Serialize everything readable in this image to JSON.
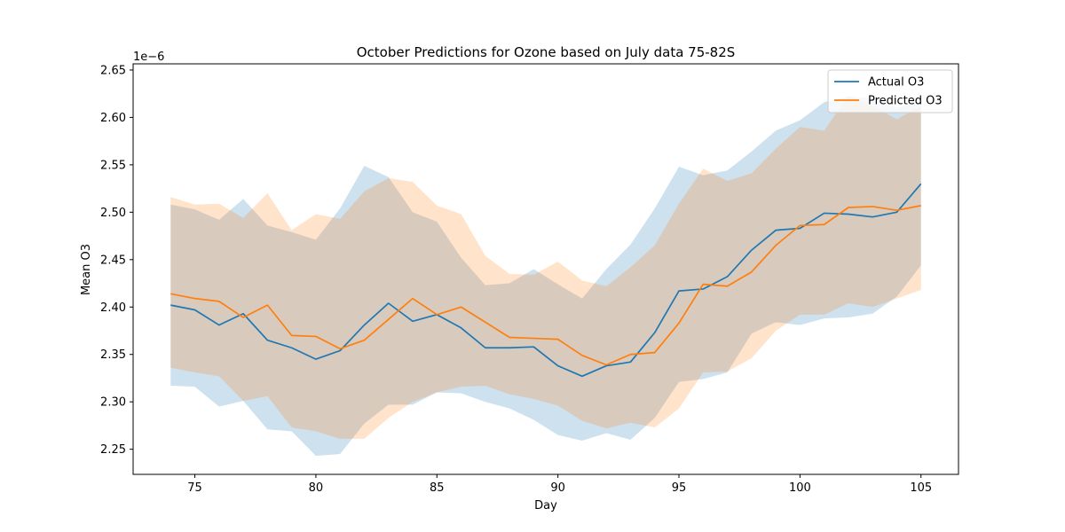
{
  "chart_data": {
    "type": "line",
    "title": "October Predictions for Ozone based on July data 75-82S",
    "xlabel": "Day",
    "ylabel": "Mean O3",
    "y_offset_text": "1e−6",
    "xlim": [
      72.45,
      106.55
    ],
    "ylim": [
      2.2235,
      2.6565
    ],
    "x_ticks": [
      75,
      80,
      85,
      90,
      95,
      100,
      105
    ],
    "x_tick_labels": [
      "75",
      "80",
      "85",
      "90",
      "95",
      "100",
      "105"
    ],
    "y_ticks": [
      2.25,
      2.3,
      2.35,
      2.4,
      2.45,
      2.5,
      2.55,
      2.6,
      2.65
    ],
    "y_tick_labels": [
      "2.25",
      "2.30",
      "2.35",
      "2.40",
      "2.45",
      "2.50",
      "2.55",
      "2.60",
      "2.65"
    ],
    "grid": false,
    "legend_position": "top-right",
    "x": [
      74,
      75,
      76,
      77,
      78,
      79,
      80,
      81,
      82,
      83,
      84,
      85,
      86,
      87,
      88,
      89,
      90,
      91,
      92,
      93,
      94,
      95,
      96,
      97,
      98,
      99,
      100,
      101,
      102,
      103,
      104,
      105
    ],
    "series": [
      {
        "name": "Actual O3",
        "color": "#1f77b4",
        "values": [
          2.402,
          2.397,
          2.381,
          2.393,
          2.365,
          2.357,
          2.345,
          2.354,
          2.381,
          2.404,
          2.385,
          2.392,
          2.378,
          2.357,
          2.357,
          2.358,
          2.338,
          2.327,
          2.338,
          2.342,
          2.373,
          2.417,
          2.419,
          2.432,
          2.46,
          2.481,
          2.483,
          2.499,
          2.498,
          2.495,
          2.5,
          2.53
        ],
        "upper": [
          2.508,
          2.503,
          2.492,
          2.514,
          2.486,
          2.479,
          2.471,
          2.504,
          2.549,
          2.537,
          2.5,
          2.49,
          2.452,
          2.423,
          2.425,
          2.44,
          2.424,
          2.409,
          2.44,
          2.466,
          2.504,
          2.548,
          2.539,
          2.544,
          2.564,
          2.586,
          2.597,
          2.616,
          2.622,
          2.62,
          2.61,
          2.617
        ],
        "lower": [
          2.317,
          2.316,
          2.295,
          2.301,
          2.271,
          2.269,
          2.243,
          2.245,
          2.277,
          2.297,
          2.297,
          2.31,
          2.309,
          2.3,
          2.293,
          2.281,
          2.265,
          2.259,
          2.267,
          2.26,
          2.283,
          2.321,
          2.324,
          2.331,
          2.372,
          2.384,
          2.381,
          2.388,
          2.389,
          2.393,
          2.411,
          2.444
        ]
      },
      {
        "name": "Predicted O3",
        "color": "#ff7f0e",
        "values": [
          2.414,
          2.409,
          2.406,
          2.389,
          2.402,
          2.37,
          2.369,
          2.356,
          2.365,
          2.387,
          2.409,
          2.392,
          2.4,
          2.384,
          2.368,
          2.367,
          2.366,
          2.349,
          2.339,
          2.35,
          2.352,
          2.383,
          2.424,
          2.422,
          2.437,
          2.465,
          2.486,
          2.487,
          2.505,
          2.506,
          2.502,
          2.507
        ],
        "upper": [
          2.516,
          2.508,
          2.509,
          2.494,
          2.52,
          2.481,
          2.498,
          2.493,
          2.522,
          2.536,
          2.532,
          2.507,
          2.498,
          2.454,
          2.435,
          2.434,
          2.448,
          2.428,
          2.422,
          2.442,
          2.465,
          2.509,
          2.546,
          2.533,
          2.541,
          2.567,
          2.59,
          2.586,
          2.623,
          2.612,
          2.598,
          2.612
        ],
        "lower": [
          2.336,
          2.331,
          2.327,
          2.301,
          2.306,
          2.273,
          2.269,
          2.261,
          2.261,
          2.283,
          2.3,
          2.31,
          2.316,
          2.317,
          2.308,
          2.303,
          2.296,
          2.28,
          2.272,
          2.278,
          2.273,
          2.293,
          2.331,
          2.332,
          2.346,
          2.375,
          2.392,
          2.392,
          2.404,
          2.4,
          2.409,
          2.418
        ]
      }
    ]
  }
}
